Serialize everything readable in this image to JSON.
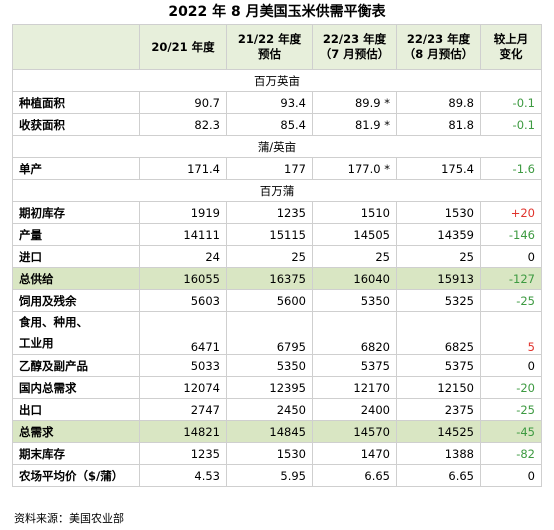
{
  "title": "2022 年 8 月美国玉米供需平衡表",
  "source": "资料来源：美国农业部",
  "headers": [
    {
      "line1": "20/21 年度",
      "line2": ""
    },
    {
      "line1": "21/22 年度",
      "line2": "预估"
    },
    {
      "line1": "22/23 年度",
      "line2": "（7 月预估）"
    },
    {
      "line1": "22/23 年度",
      "line2": "（8 月预估）"
    },
    {
      "line1": "较上月",
      "line2": "变化"
    }
  ],
  "units": {
    "area": "百万英亩",
    "yield": "蒲/英亩",
    "volume": "百万蒲"
  },
  "rows": {
    "planted": {
      "label": "种植面积",
      "v": [
        "90.7",
        "93.4",
        "89.9 *",
        "89.8"
      ],
      "chg": "-0.1"
    },
    "harvested": {
      "label": "收获面积",
      "v": [
        "82.3",
        "85.4",
        "81.9 *",
        "81.8"
      ],
      "chg": "-0.1"
    },
    "yield": {
      "label": "单产",
      "v": [
        "171.4",
        "177",
        "177.0 *",
        "175.4"
      ],
      "chg": "-1.6"
    },
    "beginning": {
      "label": "期初库存",
      "v": [
        "1919",
        "1235",
        "1510",
        "1530"
      ],
      "chg": "+20"
    },
    "production": {
      "label": "产量",
      "v": [
        "14111",
        "15115",
        "14505",
        "14359"
      ],
      "chg": "-146"
    },
    "imports": {
      "label": "进口",
      "v": [
        "24",
        "25",
        "25",
        "25"
      ],
      "chg": "0"
    },
    "total_supply": {
      "label": "总供给",
      "v": [
        "16055",
        "16375",
        "16040",
        "15913"
      ],
      "chg": "-127"
    },
    "feed": {
      "label": "饲用及残余",
      "v": [
        "5603",
        "5600",
        "5350",
        "5325"
      ],
      "chg": "-25"
    },
    "fsi": {
      "label_line1": "食用、种用、",
      "label_line2": "工业用",
      "v": [
        "6471",
        "6795",
        "6820",
        "6825"
      ],
      "chg": "5"
    },
    "ethanol": {
      "label": "乙醇及副产品",
      "v": [
        "5033",
        "5350",
        "5375",
        "5375"
      ],
      "chg": "0"
    },
    "domestic": {
      "label": "国内总需求",
      "v": [
        "12074",
        "12395",
        "12170",
        "12150"
      ],
      "chg": "-20"
    },
    "exports": {
      "label": "出口",
      "v": [
        "2747",
        "2450",
        "2400",
        "2375"
      ],
      "chg": "-25"
    },
    "total_demand": {
      "label": "总需求",
      "v": [
        "14821",
        "14845",
        "14570",
        "14525"
      ],
      "chg": "-45"
    },
    "ending": {
      "label": "期末库存",
      "v": [
        "1235",
        "1530",
        "1470",
        "1388"
      ],
      "chg": "-82"
    },
    "price": {
      "label": "农场平均价（$/蒲）",
      "v": [
        "4.53",
        "5.95",
        "6.65",
        "6.65"
      ],
      "chg": "0"
    }
  },
  "colors": {
    "header_bg": "#e7efdb",
    "highlight_bg": "#d9e6c3",
    "positive": "#e0332c",
    "negative": "#3d9a41"
  }
}
